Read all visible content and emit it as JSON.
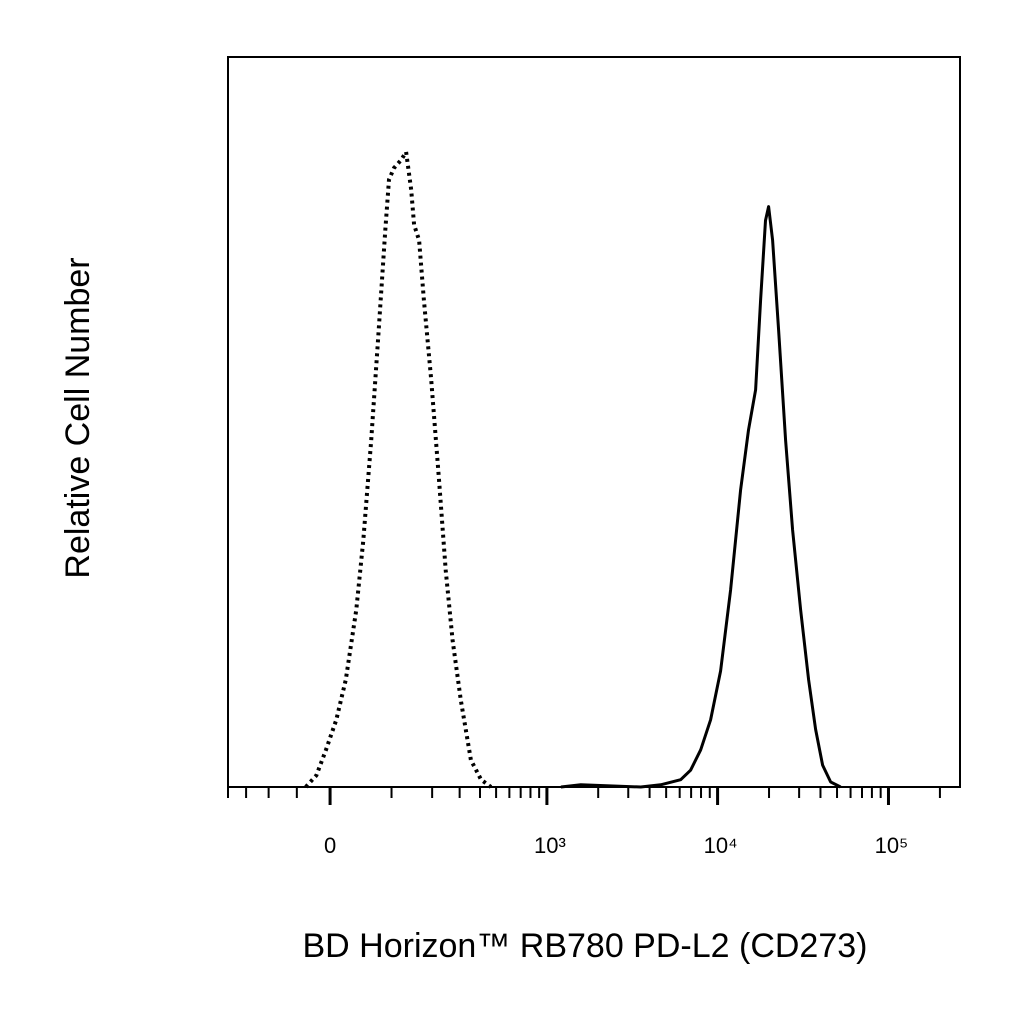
{
  "chart_data": {
    "type": "histogram-overlay",
    "xlabel": "BD Horizon™ RB780 PD-L2 (CD273)",
    "ylabel": "Relative Cell Number",
    "xscale": "biexponential",
    "xlim": [
      -200,
      262144
    ],
    "ylim": [
      0,
      100
    ],
    "xticks": [
      0,
      {
        "value": 1000,
        "label": "10³"
      },
      {
        "value": 10000,
        "label": "10⁴"
      },
      {
        "value": 100000,
        "label": "10⁵"
      }
    ],
    "xminorticks": [
      -200,
      -150,
      -100,
      -50,
      100,
      200,
      300,
      400,
      500,
      600,
      700,
      800,
      900,
      2000,
      3000,
      4000,
      5000,
      6000,
      7000,
      8000,
      9000,
      20000,
      30000,
      40000,
      50000,
      60000,
      70000,
      80000,
      90000,
      200000
    ],
    "series": [
      {
        "color": "#000000",
        "style": "dotted",
        "x": [
          -36,
          -20,
          -6,
          9,
          23,
          39,
          50,
          63,
          76,
          88,
          95,
          105,
          120,
          131,
          143,
          150,
          163,
          176,
          197,
          222,
          245,
          271,
          305,
          352,
          406,
          466
        ],
        "values": [
          0,
          1.6,
          5.1,
          9.2,
          14.7,
          24.3,
          33.8,
          47.5,
          62.6,
          76.3,
          83.2,
          84.8,
          85.9,
          87,
          81.8,
          77,
          74.9,
          66.7,
          55.8,
          42.1,
          29.7,
          20.1,
          11.9,
          3.7,
          1,
          0
        ]
      },
      {
        "color": "#000000",
        "style": "solid",
        "x": [
          1208,
          1581,
          3553,
          4648,
          6080,
          6955,
          7960,
          9104,
          10411,
          11912,
          13630,
          15174,
          16686,
          17842,
          19084,
          19883,
          20974,
          22745,
          25002,
          27464,
          30607,
          34096,
          37454,
          41148,
          45846,
          52456
        ],
        "values": [
          0,
          0.3,
          0,
          0.3,
          1,
          2.3,
          5.1,
          9.2,
          15.9,
          27,
          40.7,
          48.9,
          54.4,
          66.7,
          77.6,
          79.5,
          74.9,
          62.6,
          47.5,
          35.2,
          24.3,
          14.7,
          7.9,
          3,
          0.7,
          0
        ]
      }
    ]
  }
}
